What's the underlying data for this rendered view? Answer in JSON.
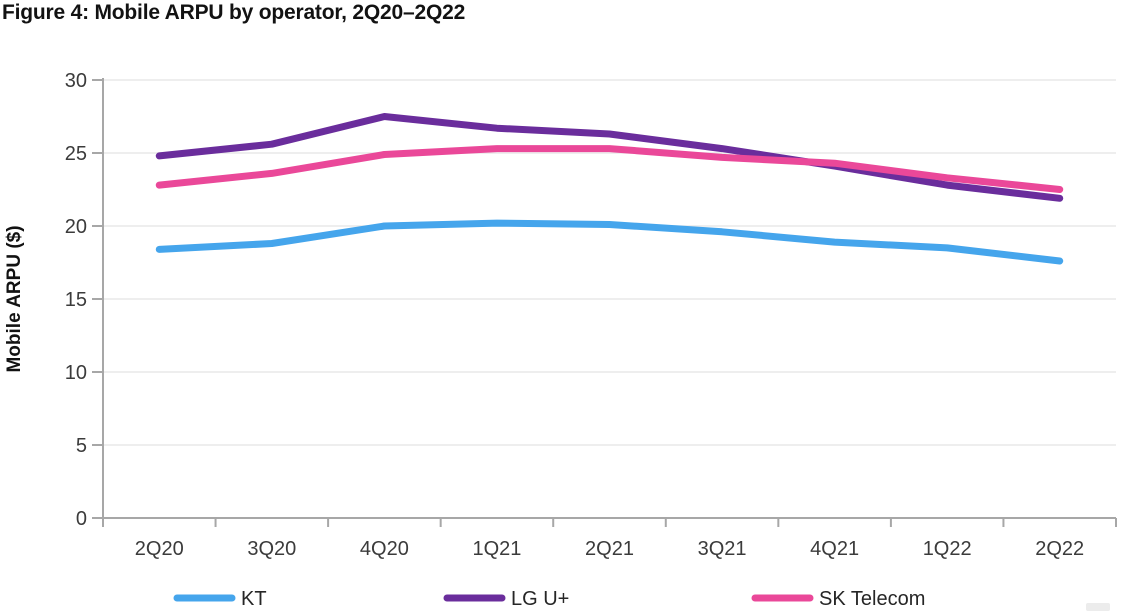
{
  "chart_data": {
    "type": "line",
    "title": "Figure 4: Mobile ARPU by operator, 2Q20–2Q22",
    "xlabel": "",
    "ylabel": "Mobile ARPU ($)",
    "categories": [
      "2Q20",
      "3Q20",
      "4Q20",
      "1Q21",
      "2Q21",
      "3Q21",
      "4Q21",
      "1Q22",
      "2Q22"
    ],
    "series": [
      {
        "name": "KT",
        "color": "#45A5EC",
        "values": [
          18.4,
          18.8,
          20.0,
          20.2,
          20.1,
          19.6,
          18.9,
          18.5,
          17.6
        ]
      },
      {
        "name": "LG U+",
        "color": "#6A2D9C",
        "values": [
          24.8,
          25.6,
          27.5,
          26.7,
          26.3,
          25.3,
          24.1,
          22.8,
          21.9
        ]
      },
      {
        "name": "SK Telecom",
        "color": "#EA4899",
        "values": [
          22.8,
          23.6,
          24.9,
          25.3,
          25.3,
          24.7,
          24.3,
          23.3,
          22.5
        ]
      }
    ],
    "ylim": [
      0,
      30
    ],
    "ytick_step": 5,
    "ytick_labels": [
      "0",
      "5",
      "10",
      "15",
      "20",
      "25",
      "30"
    ],
    "grid": true,
    "legend_position": "bottom"
  },
  "style": {
    "axis_color": "#A7A7A7",
    "grid_color": "#E9E9E9",
    "tick_label_color": "#3B3B3B",
    "title_color": "#121212",
    "background": "#FFFFFF"
  }
}
